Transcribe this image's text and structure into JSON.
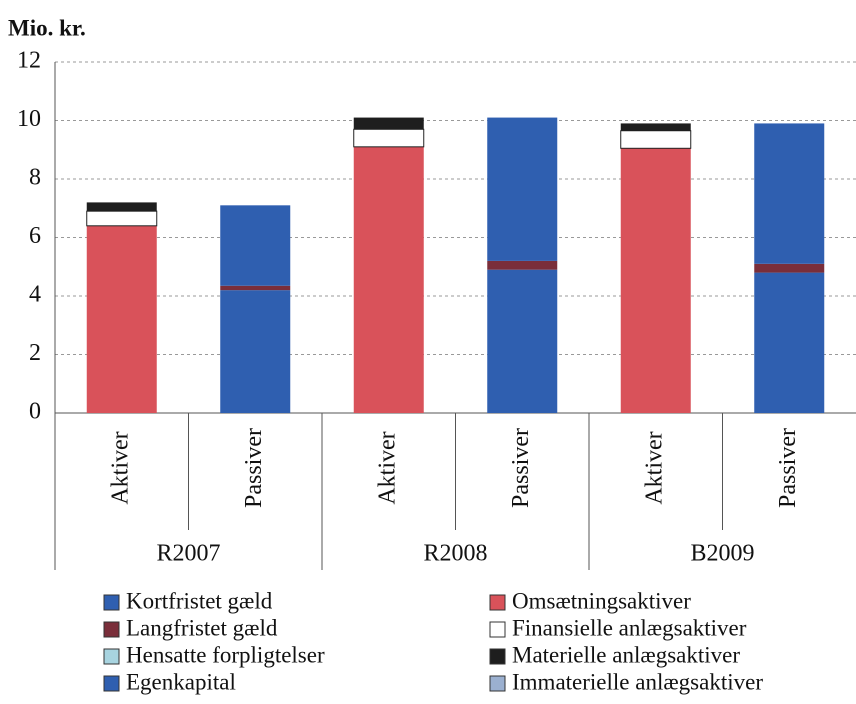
{
  "chart_data": {
    "type": "stacked_bar",
    "ylabel": "Mio. kr.",
    "categories": [
      "Aktiver",
      "Passiver",
      "Aktiver",
      "Passiver",
      "Aktiver",
      "Passiver"
    ],
    "groups": [
      "R2007",
      "R2008",
      "B2009"
    ],
    "ylim": [
      0,
      12
    ],
    "yticks": [
      0,
      2,
      4,
      6,
      8,
      10,
      12
    ],
    "grid": true,
    "series": [
      {
        "name": "Egenkapital",
        "color": "#2f5fb0",
        "values": [
          null,
          4.2,
          null,
          4.9,
          null,
          4.8
        ]
      },
      {
        "name": "Hensatte forpligtelser",
        "color": "#a8d4e0",
        "values": [
          null,
          null,
          null,
          null,
          null,
          null
        ]
      },
      {
        "name": "Langfristet gæld",
        "color": "#7a2e3a",
        "values": [
          null,
          0.15,
          null,
          0.3,
          null,
          0.3
        ]
      },
      {
        "name": "Kortfristet gæld",
        "color": "#2f5fb0",
        "values": [
          null,
          2.75,
          null,
          4.9,
          null,
          4.8
        ]
      },
      {
        "name": "Omsætningsaktiver",
        "color": "#d9525a",
        "values": [
          6.4,
          null,
          9.1,
          null,
          9.05,
          null
        ]
      },
      {
        "name": "Finansielle anlægsaktiver",
        "color": "#ffffff",
        "values": [
          0.5,
          null,
          0.6,
          null,
          0.6,
          null
        ]
      },
      {
        "name": "Materielle anlægsaktiver",
        "color": "#1e1e1e",
        "values": [
          0.3,
          null,
          0.4,
          null,
          0.25,
          null
        ]
      },
      {
        "name": "Immaterielle anlægsaktiver",
        "color": "#9bb0d0",
        "values": [
          null,
          null,
          null,
          null,
          null,
          null
        ]
      }
    ]
  }
}
